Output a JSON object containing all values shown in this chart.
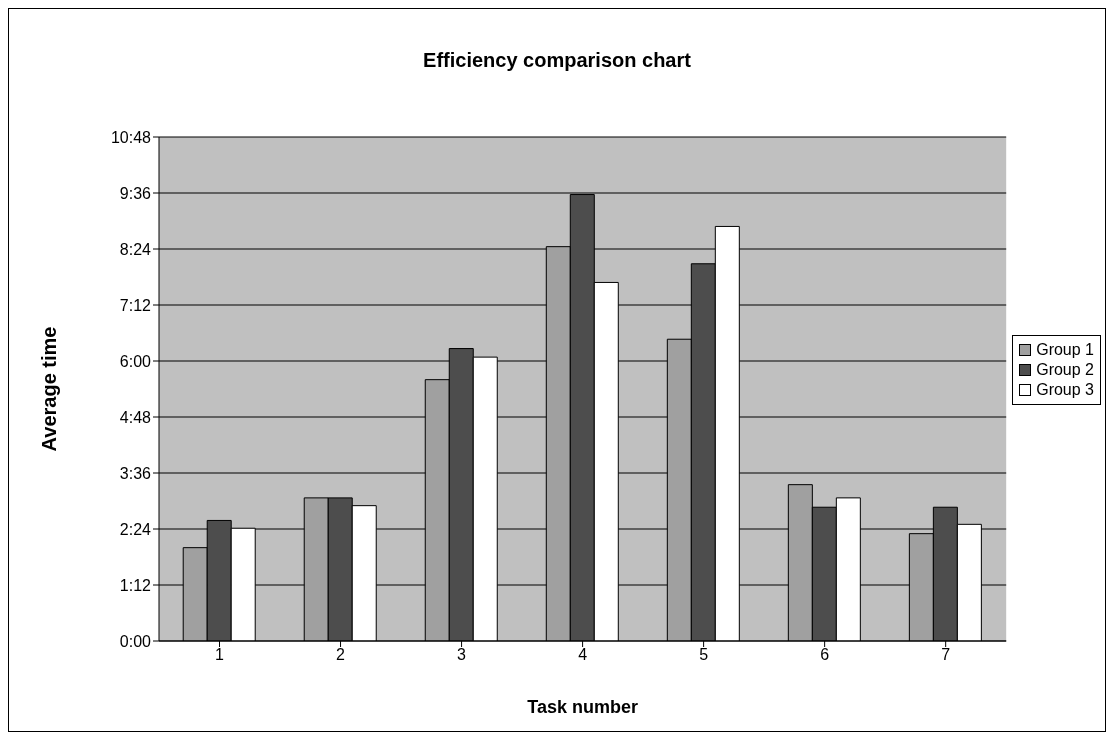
{
  "chart_data": {
    "type": "bar",
    "title": "Efficiency comparison chart",
    "xlabel": "Task number",
    "ylabel": "Average time",
    "categories": [
      "1",
      "2",
      "3",
      "4",
      "5",
      "6",
      "7"
    ],
    "series": [
      {
        "name": "Group 1",
        "color": "#a0a0a0",
        "values": [
          120,
          184,
          336,
          507,
          388,
          201,
          138
        ]
      },
      {
        "name": "Group 2",
        "color": "#4d4d4d",
        "values": [
          155,
          184,
          376,
          574,
          485,
          172,
          172
        ]
      },
      {
        "name": "Group 3",
        "color": "#ffffff",
        "values": [
          145,
          174,
          365,
          461,
          533,
          184,
          150
        ]
      }
    ],
    "ylim": [
      0,
      648
    ],
    "yticks": [
      {
        "value": 0,
        "label": "0:00"
      },
      {
        "value": 72,
        "label": "1:12"
      },
      {
        "value": 144,
        "label": "2:24"
      },
      {
        "value": 216,
        "label": "3:36"
      },
      {
        "value": 288,
        "label": "4:48"
      },
      {
        "value": 360,
        "label": "6:00"
      },
      {
        "value": 432,
        "label": "7:12"
      },
      {
        "value": 504,
        "label": "8:24"
      },
      {
        "value": 576,
        "label": "9:36"
      },
      {
        "value": 648,
        "label": "10:48"
      }
    ],
    "grid": "y",
    "legend": "right"
  }
}
